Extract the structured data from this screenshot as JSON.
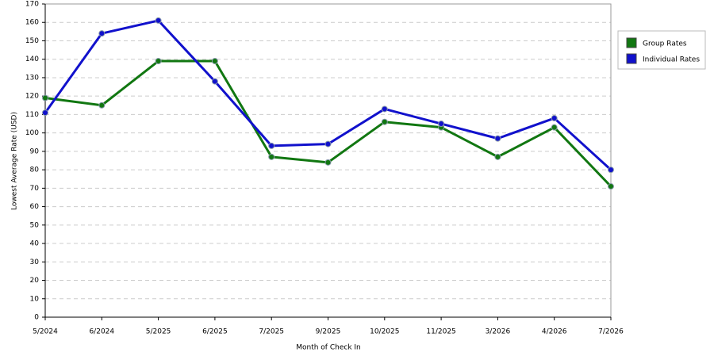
{
  "chart_data": {
    "type": "line",
    "x_label": "Month of Check In",
    "y_label": "Lowest Average Rate (USD)",
    "categories": [
      "5/2024",
      "6/2024",
      "5/2025",
      "6/2025",
      "7/2025",
      "9/2025",
      "10/2025",
      "11/2025",
      "3/2026",
      "4/2026",
      "7/2026"
    ],
    "series": [
      {
        "name": "Group Rates",
        "color": "#117711",
        "values": [
          119,
          115,
          139,
          139,
          87,
          84,
          106,
          103,
          87,
          103,
          71
        ]
      },
      {
        "name": "Individual Rates",
        "color": "#1111cc",
        "values": [
          111,
          154,
          161,
          128,
          93,
          94,
          113,
          105,
          97,
          108,
          80
        ]
      }
    ],
    "ylim": [
      0,
      170
    ],
    "yticks": [
      0,
      10,
      20,
      30,
      40,
      50,
      60,
      70,
      80,
      90,
      100,
      110,
      120,
      130,
      140,
      150,
      160,
      170
    ],
    "grid": true,
    "legend": "right"
  }
}
